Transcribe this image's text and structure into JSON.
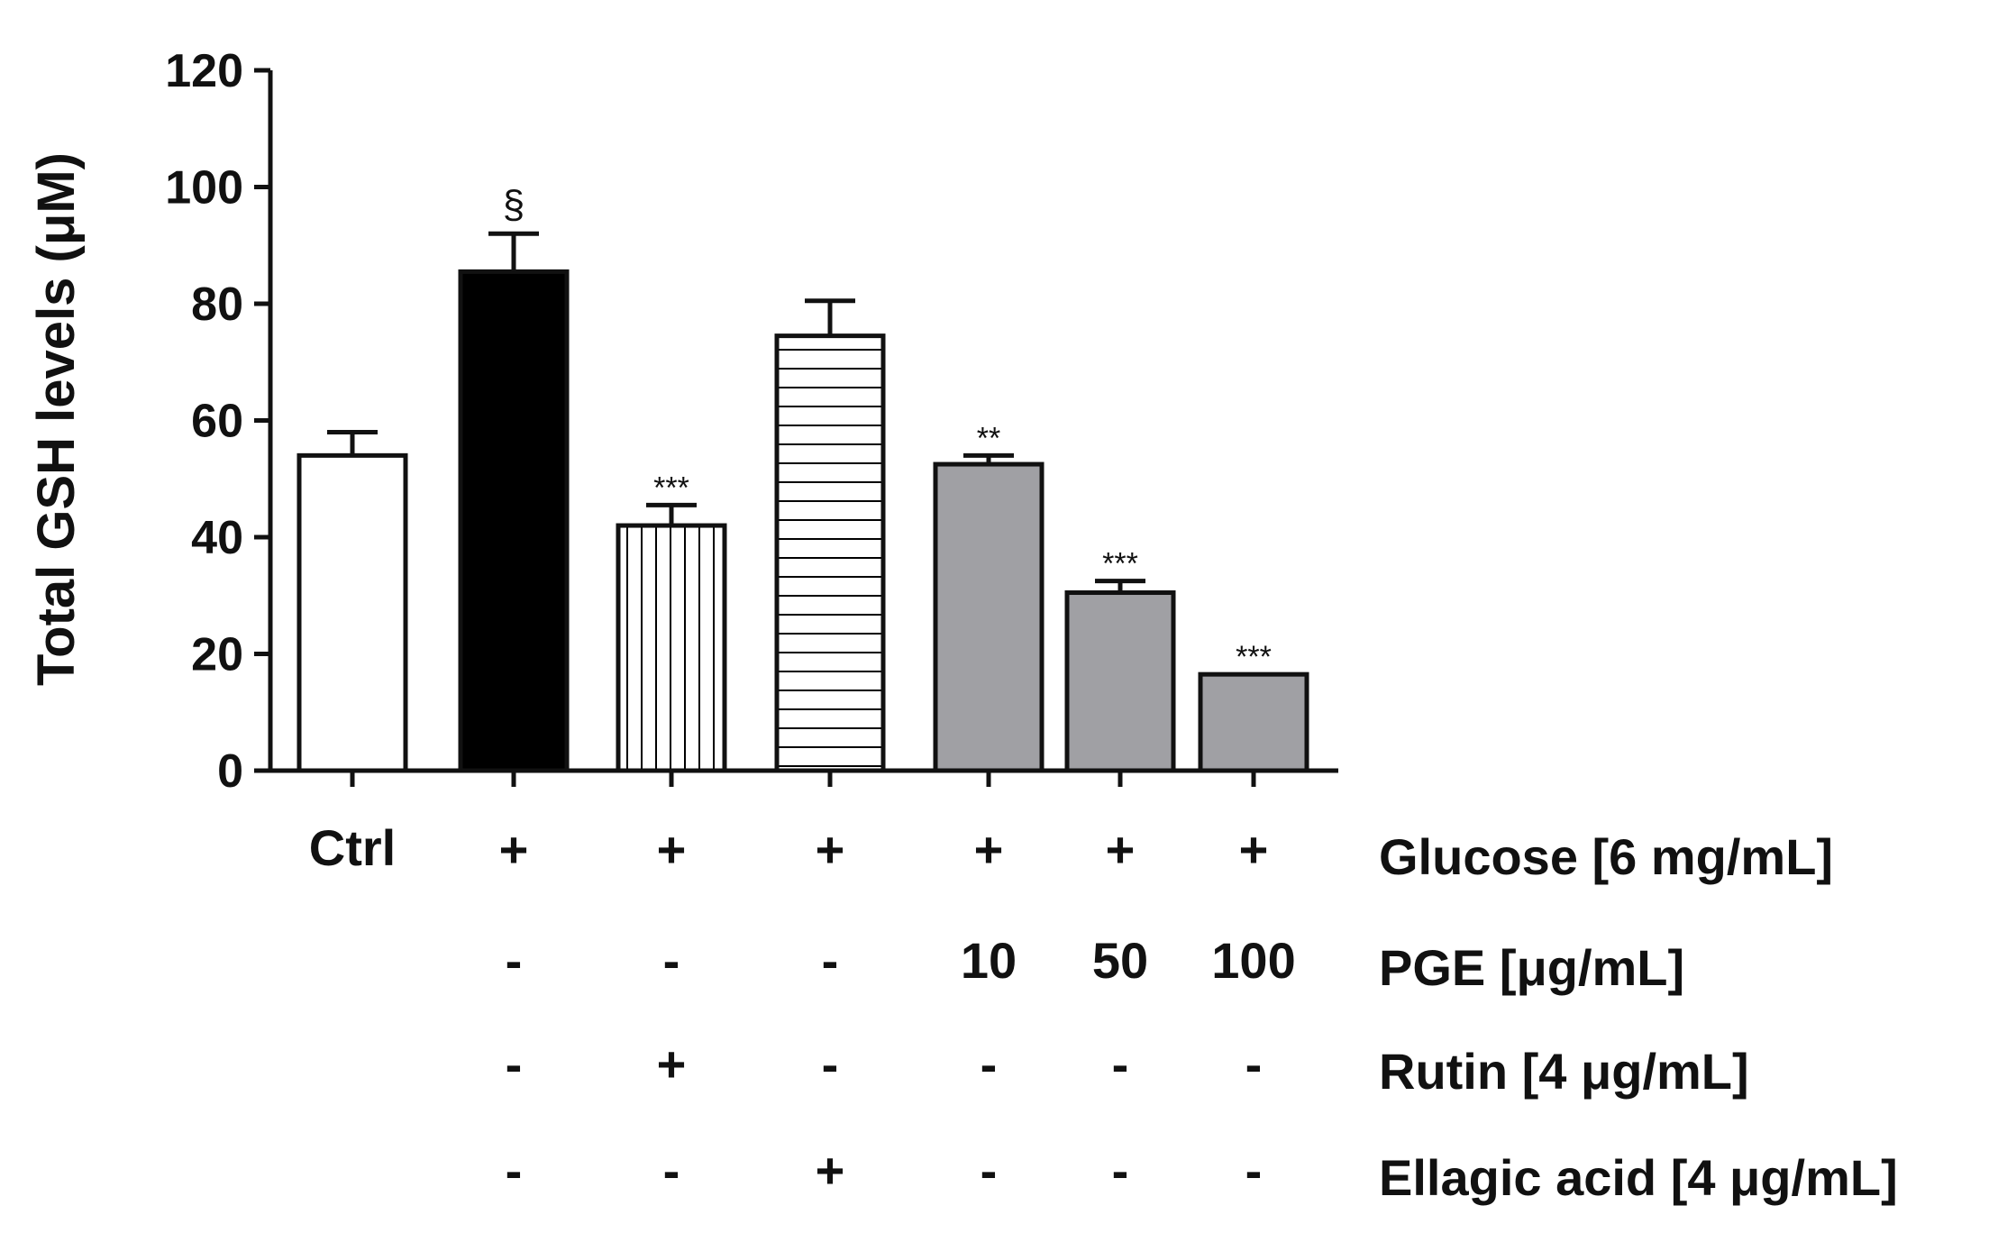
{
  "chart_data": {
    "type": "bar",
    "ylabel": "Total GSH levels (μM)",
    "ylim": [
      0,
      120
    ],
    "yticks": [
      "0",
      "20",
      "40",
      "60",
      "80",
      "100",
      "120"
    ],
    "grid": false,
    "legend": "none",
    "categories": [
      "Ctrl",
      "Glucose",
      "Glucose + Rutin",
      "Glucose + Ellagic acid",
      "Glucose + PGE 10",
      "Glucose + PGE 50",
      "Glucose + PGE 100"
    ],
    "values": [
      54,
      85.5,
      42,
      74.5,
      52.5,
      30.5,
      16.5
    ],
    "errors": [
      4,
      6.5,
      3.5,
      6,
      1.5,
      2,
      0
    ],
    "significance": [
      "",
      "§",
      "***",
      "",
      "**",
      "***",
      "***"
    ],
    "fills": [
      "white",
      "black",
      "vertical-lines",
      "horizontal-lines",
      "gray",
      "gray",
      "gray"
    ],
    "colors": {
      "gray": "#a0a0a4",
      "black": "#000000",
      "white": "#ffffff"
    },
    "x_label_ctrl": "Ctrl",
    "conditions": [
      {
        "label": "Glucose [6 mg/mL]",
        "values": [
          "",
          "+",
          "+",
          "+",
          "+",
          "+",
          "+"
        ]
      },
      {
        "label": "PGE [μg/mL]",
        "values": [
          "",
          "-",
          "-",
          "-",
          "10",
          "50",
          "100"
        ]
      },
      {
        "label": "Rutin [4 μg/mL]",
        "values": [
          "",
          "-",
          "+",
          "-",
          "-",
          "-",
          "-"
        ]
      },
      {
        "label": "Ellagic acid [4 μg/mL]",
        "values": [
          "",
          "-",
          "-",
          "+",
          "-",
          "-",
          "-"
        ]
      }
    ]
  }
}
